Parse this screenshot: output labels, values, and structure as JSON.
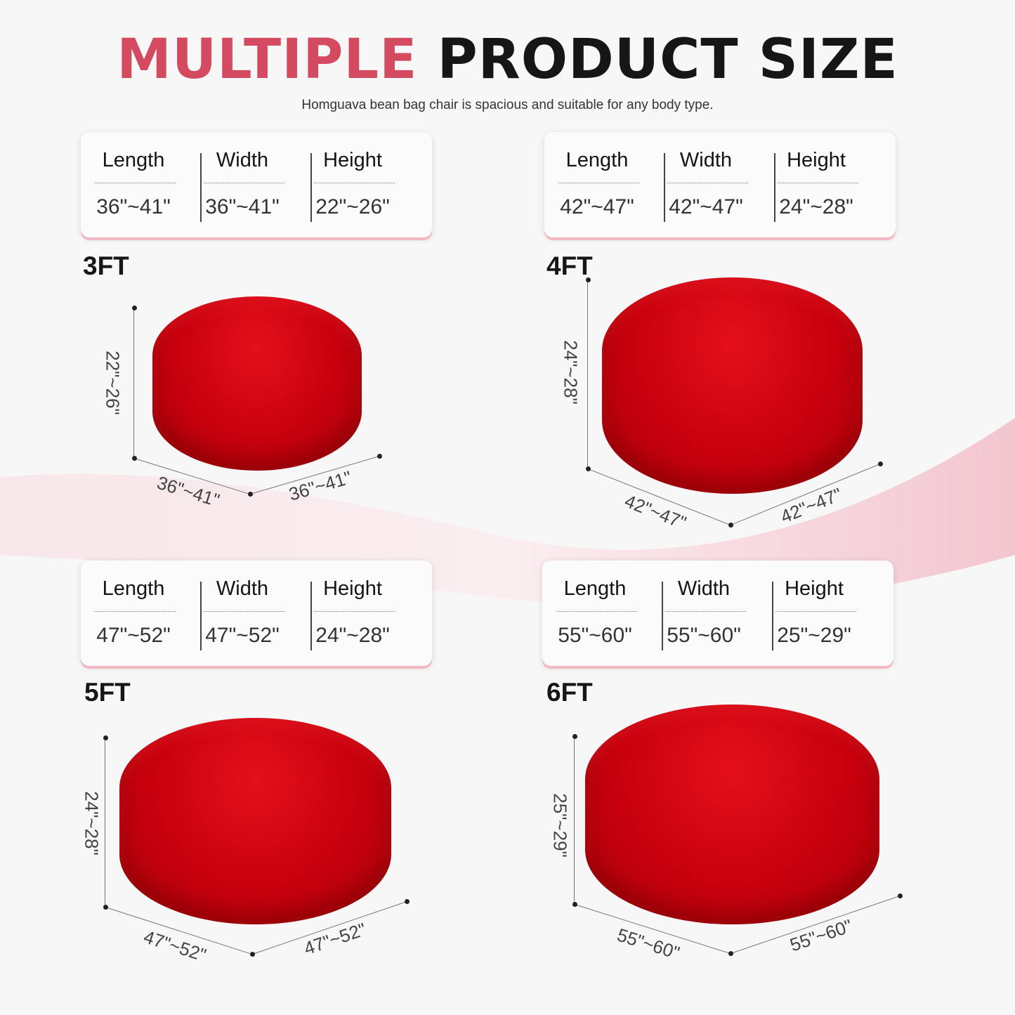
{
  "header": {
    "title_accent": "MULTIPLE",
    "title_rest": "PRODUCT SIZE",
    "subtitle": "Homguava bean bag chair is spacious and suitable for any body type."
  },
  "colors": {
    "accent": "#d44a60",
    "product": "#c8000e",
    "card_shadow": "#f2b8c4"
  },
  "column_headers": [
    "Length",
    "Width",
    "Height"
  ],
  "panels": [
    {
      "size": "3FT",
      "length": "36\"~41\"",
      "width": "36\"~41\"",
      "height": "22\"~26\""
    },
    {
      "size": "4FT",
      "length": "42\"~47\"",
      "width": "42\"~47\"",
      "height": "24\"~28\""
    },
    {
      "size": "5FT",
      "length": "47\"~52\"",
      "width": "47\"~52\"",
      "height": "24\"~28\""
    },
    {
      "size": "6FT",
      "length": "55\"~60\"",
      "width": "55\"~60\"",
      "height": "25\"~29\""
    }
  ]
}
